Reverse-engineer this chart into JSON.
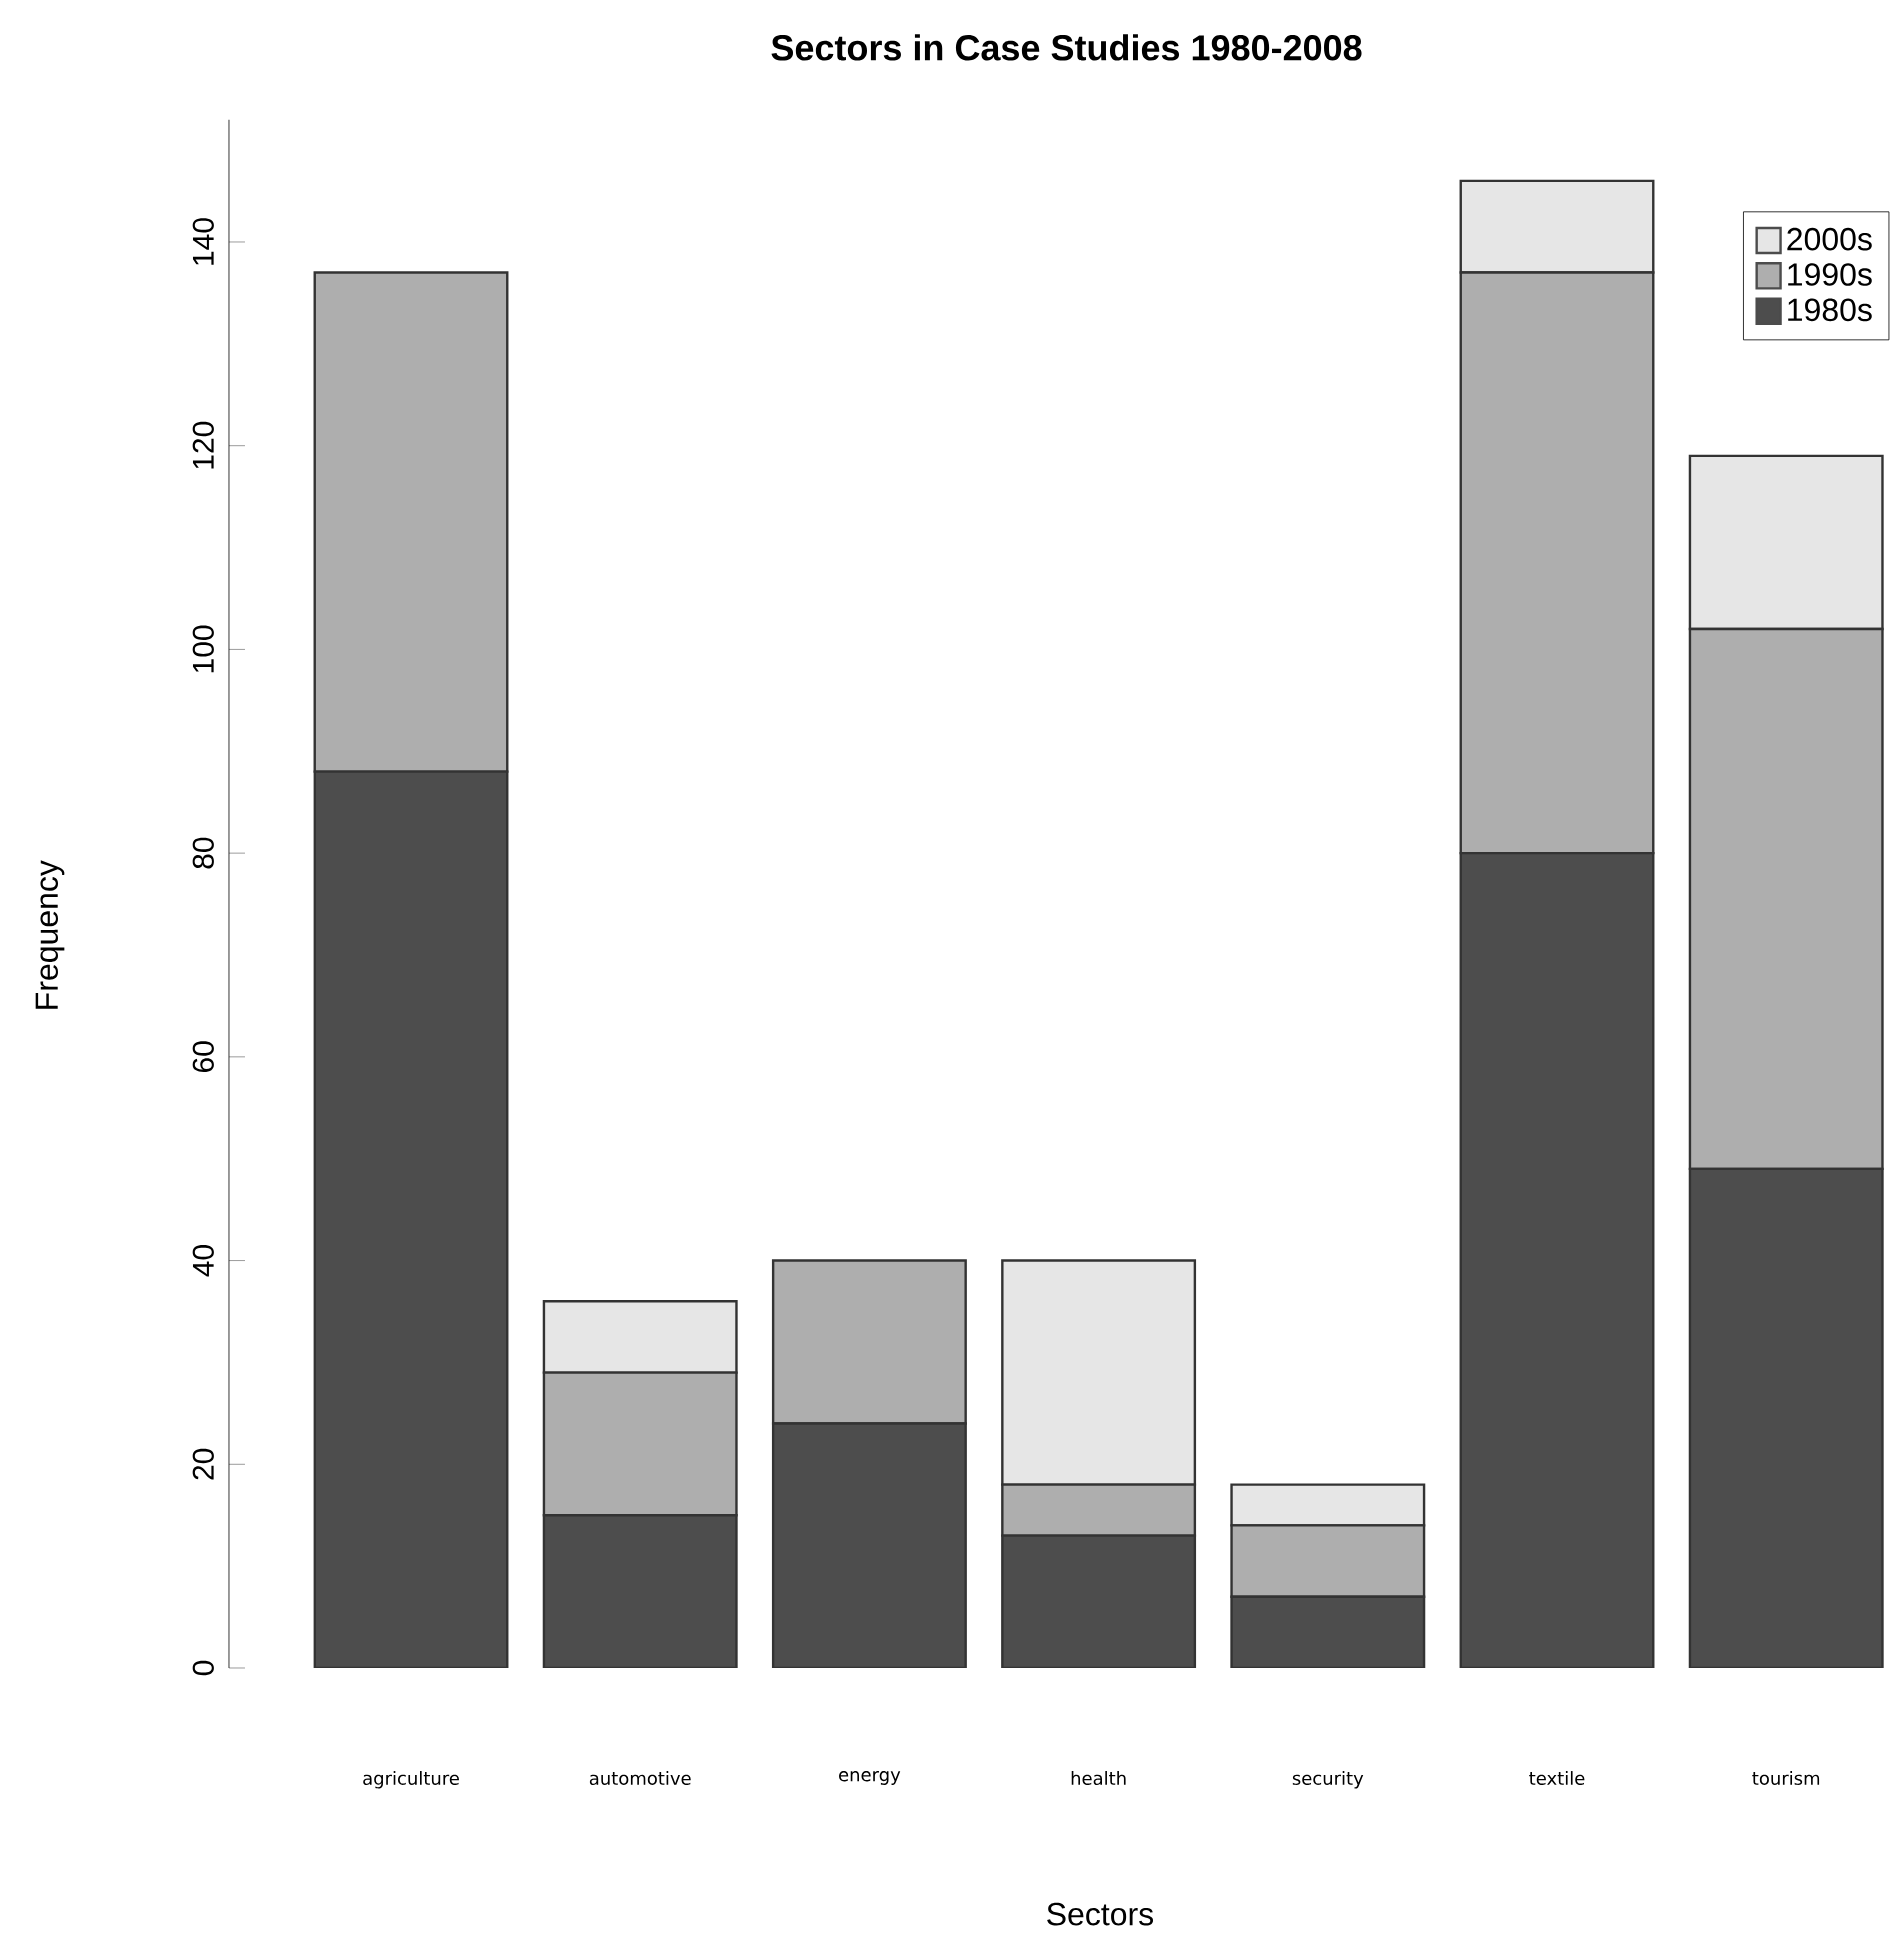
{
  "chart_data": {
    "type": "bar",
    "title": "Sectors in Case Studies 1980-2008",
    "xlabel": "Sectors",
    "ylabel": "Frequency",
    "categories": [
      "agriculture",
      "automotive",
      "energy",
      "health",
      "security",
      "textile",
      "tourism"
    ],
    "stacked": true,
    "series": [
      {
        "name": "1980s",
        "color": "#4d4d4d",
        "values": [
          88,
          15,
          24,
          13,
          7,
          80,
          49
        ]
      },
      {
        "name": "1990s",
        "color": "#aeaeae",
        "values": [
          49,
          14,
          16,
          5,
          7,
          57,
          53
        ]
      },
      {
        "name": "2000s",
        "color": "#e6e6e6",
        "values": [
          0,
          7,
          0,
          22,
          4,
          9,
          17
        ]
      }
    ],
    "ylim": [
      0,
      152
    ],
    "yticks": [
      0,
      20,
      40,
      60,
      80,
      100,
      120,
      140
    ],
    "legend": "top right",
    "grid": false
  }
}
